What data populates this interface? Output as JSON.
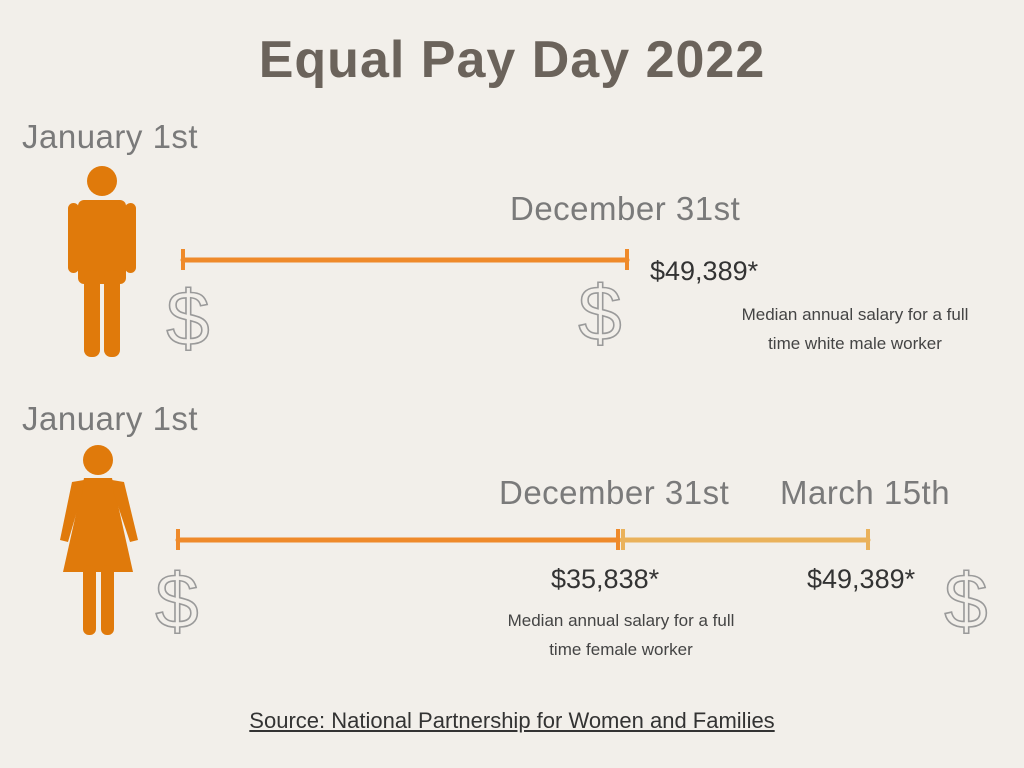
{
  "title": "Equal Pay Day 2022",
  "colors": {
    "figure": "#e07a0b",
    "timeline_primary": "#ef8a2a",
    "timeline_extra": "#eab25b",
    "dollar_outline": "#9a9a9a"
  },
  "icons": {
    "male": "man-figure-icon",
    "female": "woman-figure-icon",
    "currency": "dollar-sign-icon"
  },
  "dollar_glyph": "$",
  "male_row": {
    "start_label": "January 1st",
    "end_label": "December 31st",
    "amount": "$49,389*",
    "note_line1": "Median annual salary for a full",
    "note_line2": "time white male worker"
  },
  "female_row": {
    "start_label": "January 1st",
    "mid_label": "December 31st",
    "end_label": "March 15th",
    "mid_amount": "$35,838*",
    "end_amount": "$49,389*",
    "note_line1": "Median annual salary for a full",
    "note_line2": "time female worker"
  },
  "source": "Source: National Partnership for Women and Families"
}
